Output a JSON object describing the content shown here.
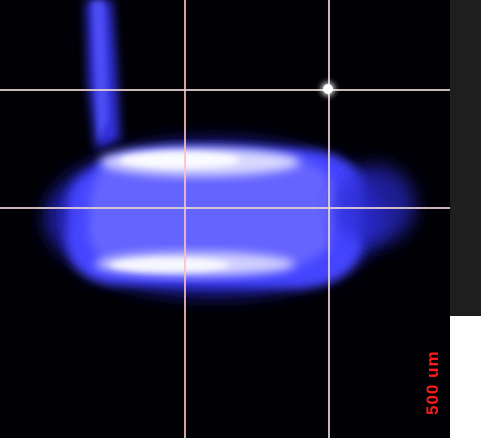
{
  "image": {
    "scale_bar_label": "500 um",
    "colors": {
      "background": "#000000",
      "specimen": "#3a3aff",
      "scale_text": "#ff1a1a",
      "guide_lines": "#e6d2d2"
    }
  }
}
